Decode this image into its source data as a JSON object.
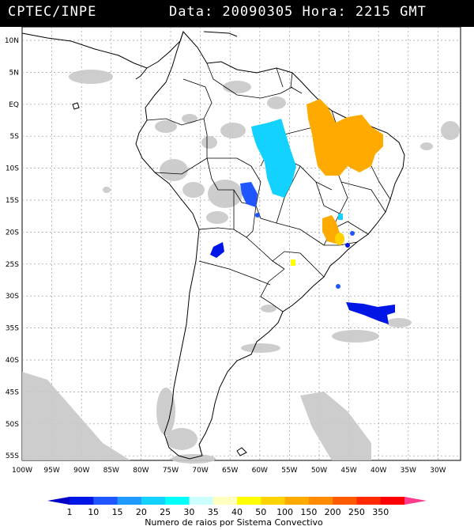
{
  "header": {
    "source": "CPTEC/INPE",
    "timestamp": "Data: 20090305 Hora: 2215 GMT"
  },
  "map": {
    "lat_ticks": [
      "10N",
      "5N",
      "EQ",
      "5S",
      "10S",
      "15S",
      "20S",
      "25S",
      "30S",
      "35S",
      "40S",
      "45S",
      "50S",
      "55S"
    ],
    "lon_ticks": [
      "100W",
      "95W",
      "90W",
      "85W",
      "80W",
      "75W",
      "70W",
      "65W",
      "60W",
      "55W",
      "50W",
      "45W",
      "40W",
      "35W",
      "30W"
    ]
  },
  "colorbar": {
    "labels": [
      "1",
      "10",
      "15",
      "20",
      "25",
      "30",
      "35",
      "40",
      "50",
      "100",
      "150",
      "200",
      "250",
      "350"
    ],
    "colors": [
      "#0016e6",
      "#1f56ff",
      "#1f9bff",
      "#14d2ff",
      "#00ffff",
      "#ccffff",
      "#ffffc0",
      "#ffff00",
      "#ffd200",
      "#ffaa00",
      "#ff8c00",
      "#ff5a00",
      "#ff2a00",
      "#ff0000"
    ],
    "title": "Numero de raios por Sistema Convectivo"
  },
  "colors": {
    "cloud": "#c8c8c8",
    "land": "#ffffff",
    "border": "#000000"
  }
}
